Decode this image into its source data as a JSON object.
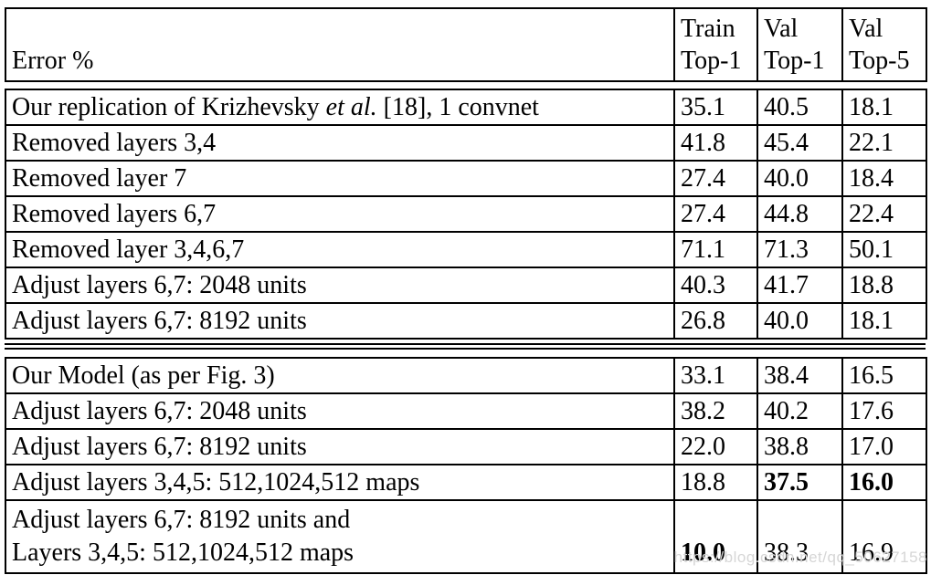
{
  "figure": {
    "description_column_header": "Error %",
    "value_columns": [
      {
        "line1": "Train",
        "line2": "Top-1"
      },
      {
        "line1": "Val",
        "line2": "Top-1"
      },
      {
        "line1": "Val",
        "line2": "Top-5"
      }
    ]
  },
  "sections": [
    {
      "name": "krizhevsky-architecture-ablations",
      "rows": [
        {
          "label_lines": [
            [
              {
                "text": "Our replication of Krizhevsky ",
                "italic": false
              },
              {
                "text": "et al.",
                "italic": true
              },
              {
                "text": " [18], 1 convnet",
                "italic": false
              }
            ]
          ],
          "values": [
            {
              "text": "35.1",
              "bold": false
            },
            {
              "text": "40.5",
              "bold": false
            },
            {
              "text": "18.1",
              "bold": false
            }
          ]
        },
        {
          "label_lines": [
            [
              {
                "text": "Removed layers 3,4",
                "italic": false
              }
            ]
          ],
          "values": [
            {
              "text": "41.8",
              "bold": false
            },
            {
              "text": "45.4",
              "bold": false
            },
            {
              "text": "22.1",
              "bold": false
            }
          ]
        },
        {
          "label_lines": [
            [
              {
                "text": "Removed layer 7",
                "italic": false
              }
            ]
          ],
          "values": [
            {
              "text": "27.4",
              "bold": false
            },
            {
              "text": "40.0",
              "bold": false
            },
            {
              "text": "18.4",
              "bold": false
            }
          ]
        },
        {
          "label_lines": [
            [
              {
                "text": "Removed layers 6,7",
                "italic": false
              }
            ]
          ],
          "values": [
            {
              "text": "27.4",
              "bold": false
            },
            {
              "text": "44.8",
              "bold": false
            },
            {
              "text": "22.4",
              "bold": false
            }
          ]
        },
        {
          "label_lines": [
            [
              {
                "text": "Removed layer 3,4,6,7",
                "italic": false
              }
            ]
          ],
          "values": [
            {
              "text": "71.1",
              "bold": false
            },
            {
              "text": "71.3",
              "bold": false
            },
            {
              "text": "50.1",
              "bold": false
            }
          ]
        },
        {
          "label_lines": [
            [
              {
                "text": "Adjust layers 6,7: 2048 units",
                "italic": false
              }
            ]
          ],
          "values": [
            {
              "text": "40.3",
              "bold": false
            },
            {
              "text": "41.7",
              "bold": false
            },
            {
              "text": "18.8",
              "bold": false
            }
          ]
        },
        {
          "label_lines": [
            [
              {
                "text": "Adjust layers 6,7: 8192 units",
                "italic": false
              }
            ]
          ],
          "values": [
            {
              "text": "26.8",
              "bold": false
            },
            {
              "text": "40.0",
              "bold": false
            },
            {
              "text": "18.1",
              "bold": false
            }
          ]
        }
      ]
    },
    {
      "name": "our-model-ablations",
      "rows": [
        {
          "label_lines": [
            [
              {
                "text": "Our Model (as per Fig. 3)",
                "italic": false
              }
            ]
          ],
          "values": [
            {
              "text": "33.1",
              "bold": false
            },
            {
              "text": "38.4",
              "bold": false
            },
            {
              "text": "16.5",
              "bold": false
            }
          ]
        },
        {
          "label_lines": [
            [
              {
                "text": "Adjust layers 6,7: 2048 units",
                "italic": false
              }
            ]
          ],
          "values": [
            {
              "text": "38.2",
              "bold": false
            },
            {
              "text": "40.2",
              "bold": false
            },
            {
              "text": "17.6",
              "bold": false
            }
          ]
        },
        {
          "label_lines": [
            [
              {
                "text": "Adjust layers 6,7: 8192 units",
                "italic": false
              }
            ]
          ],
          "values": [
            {
              "text": "22.0",
              "bold": false
            },
            {
              "text": "38.8",
              "bold": false
            },
            {
              "text": "17.0",
              "bold": false
            }
          ]
        },
        {
          "label_lines": [
            [
              {
                "text": "Adjust layers 3,4,5: 512,1024,512 maps",
                "italic": false
              }
            ]
          ],
          "values": [
            {
              "text": "18.8",
              "bold": false
            },
            {
              "text": "37.5",
              "bold": true
            },
            {
              "text": "16.0",
              "bold": true
            }
          ]
        },
        {
          "label_lines": [
            [
              {
                "text": "Adjust layers 6,7: 8192 units and",
                "italic": false
              }
            ],
            [
              {
                "text": "Layers 3,4,5: 512,1024,512 maps",
                "italic": false
              }
            ]
          ],
          "values": [
            {
              "text": "10.0",
              "bold": true
            },
            {
              "text": "38.3",
              "bold": false
            },
            {
              "text": "16.9",
              "bold": false
            }
          ]
        }
      ]
    }
  ],
  "watermark": {
    "text": "https://blog.csdn.net/qq_50627158",
    "color": "#d6d6d6"
  },
  "colors": {
    "background": "#ffffff",
    "text": "#000000",
    "border": "#000000"
  }
}
